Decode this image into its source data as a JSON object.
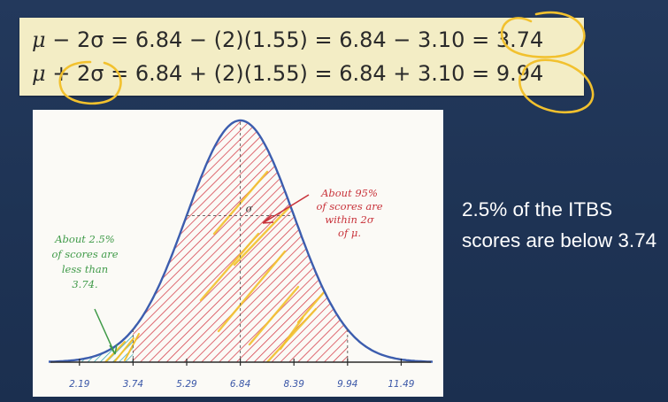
{
  "formula": {
    "line1": {
      "mu": "μ",
      "op": "−",
      "two_sigma": "2σ",
      "rhs": "= 6.84 − (2)(1.55) = 6.84 − 3.10 =",
      "result": "3.74"
    },
    "line2": {
      "mu": "μ",
      "op": "+",
      "two_sigma": "2σ",
      "rhs": "= 6.84 + (2)(1.55) = 6.84 + 3.10 =",
      "result": "9.94"
    }
  },
  "chart": {
    "tick_labels": [
      "2.19",
      "3.74",
      "5.29",
      "6.84",
      "8.39",
      "9.94",
      "11.49"
    ],
    "sigma_label": "σ",
    "annotation_right": [
      "About 95%",
      "of scores are",
      "within 2σ",
      "of μ."
    ],
    "annotation_left": [
      "About 2.5%",
      "of scores are",
      "less than",
      "3.74."
    ]
  },
  "chart_data": {
    "type": "area",
    "mean": 6.84,
    "sd": 1.55,
    "x_ticks": [
      2.19,
      3.74,
      5.29,
      6.84,
      8.39,
      9.94,
      11.49
    ],
    "xlim": [
      1.3,
      12.4
    ],
    "shaded_regions": [
      {
        "from": 3.74,
        "to": 9.94,
        "hatch_color": "#d64550"
      },
      {
        "from": 2.19,
        "to": 3.74,
        "hatch_color": "#2aa5b0"
      }
    ]
  },
  "caption": {
    "text": "2.5% of the ITBS scores are below 3.74"
  },
  "colors": {
    "slide_background": "#1f3556",
    "formula_box": "#f3edc5",
    "curve": "#3c5dae",
    "red_hatch": "#d64550",
    "teal_hatch": "#2aa5b0",
    "highlight_yellow": "#f2c12e"
  }
}
